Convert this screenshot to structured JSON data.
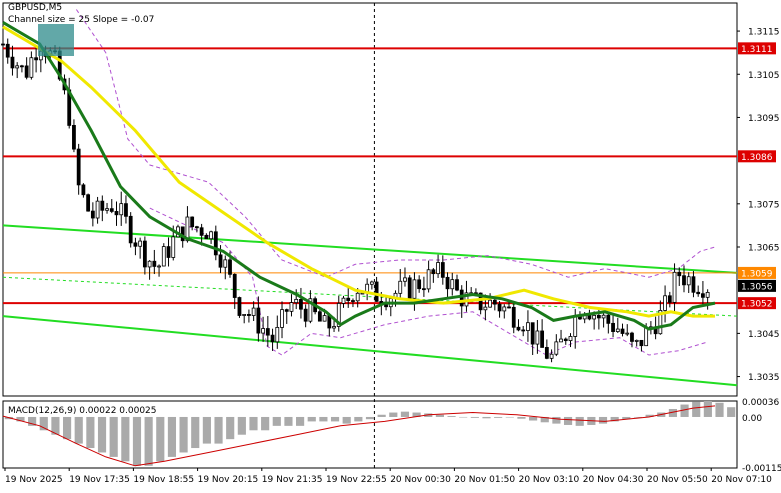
{
  "header": {
    "symbol": "GBPUSD,M5",
    "indicator": "Channel size = 25 Slope = -0.07"
  },
  "macd": {
    "label": "MACD(12,26,9) 0.00022 0.00025",
    "axis_top": "0.00036",
    "axis_zero": "0.00",
    "axis_bottom": "-0.00115"
  },
  "colors": {
    "candle": "#000000",
    "fast_ma": "#1a7a1a",
    "slow_ma": "#f0e800",
    "channel": "#22dd22",
    "envelope": "#b050d0",
    "hline": "#dd0000",
    "current_price": "#ff8800",
    "macd_hist": "#aaaaaa",
    "macd_signal": "#cc0000"
  },
  "chart_data": {
    "type": "line",
    "title": "GBPUSD,M5",
    "y_ticks": [
      "1.3115",
      "1.3105",
      "1.3095",
      "1.3075",
      "1.3065",
      "1.3045",
      "1.3035"
    ],
    "ylim": [
      1.30305,
      1.31215
    ],
    "x_ticks": [
      "19 Nov 2025",
      "19 Nov 17:35",
      "19 Nov 18:55",
      "19 Nov 20:15",
      "19 Nov 21:35",
      "19 Nov 22:55",
      "20 Nov 00:30",
      "20 Nov 01:50",
      "20 Nov 03:10",
      "20 Nov 04:30",
      "20 Nov 05:50",
      "20 Nov 07:10"
    ],
    "levels": [
      {
        "label": "1.3111",
        "value": 1.3111,
        "kind": "resistance"
      },
      {
        "label": "1.3086",
        "value": 1.3086,
        "kind": "resistance"
      },
      {
        "label": "1.3059",
        "value": 1.3059,
        "kind": "current"
      },
      {
        "label": "1.3052",
        "value": 1.3052,
        "kind": "support"
      }
    ],
    "last_price": "1.3056",
    "channel": {
      "upper": [
        [
          0,
          1.307
        ],
        [
          100,
          1.3059
        ]
      ],
      "lower": [
        [
          0,
          1.3049
        ],
        [
          100,
          1.3033
        ]
      ]
    },
    "price_path": [
      [
        0,
        1.3112
      ],
      [
        3,
        1.3105
      ],
      [
        5,
        1.3113
      ],
      [
        7,
        1.3108
      ],
      [
        9,
        1.3096
      ],
      [
        10,
        1.308
      ],
      [
        12,
        1.3072
      ],
      [
        15,
        1.3075
      ],
      [
        17,
        1.307
      ],
      [
        19,
        1.3064
      ],
      [
        21,
        1.306
      ],
      [
        23,
        1.3066
      ],
      [
        25,
        1.307
      ],
      [
        28,
        1.3069
      ],
      [
        30,
        1.3062
      ],
      [
        32,
        1.3052
      ],
      [
        35,
        1.3047
      ],
      [
        37,
        1.3043
      ],
      [
        39,
        1.3052
      ],
      [
        42,
        1.305
      ],
      [
        44,
        1.3046
      ],
      [
        46,
        1.305
      ],
      [
        48,
        1.3056
      ],
      [
        51,
        1.3054
      ],
      [
        53,
        1.3054
      ],
      [
        56,
        1.3056
      ],
      [
        58,
        1.3058
      ],
      [
        60,
        1.3059
      ],
      [
        62,
        1.3054
      ],
      [
        64,
        1.3052
      ],
      [
        67,
        1.3052
      ],
      [
        69,
        1.305
      ],
      [
        71,
        1.3048
      ],
      [
        73,
        1.3042
      ],
      [
        75,
        1.3039
      ],
      [
        77,
        1.3046
      ],
      [
        79,
        1.3052
      ],
      [
        81,
        1.3049
      ],
      [
        84,
        1.3046
      ],
      [
        86,
        1.3041
      ],
      [
        88,
        1.3046
      ],
      [
        90,
        1.305
      ],
      [
        92,
        1.3059
      ],
      [
        94,
        1.3057
      ],
      [
        96,
        1.3056
      ]
    ],
    "fast_ma_path": [
      [
        0,
        1.3117
      ],
      [
        5,
        1.3112
      ],
      [
        8,
        1.3104
      ],
      [
        12,
        1.3092
      ],
      [
        16,
        1.3079
      ],
      [
        20,
        1.3072
      ],
      [
        25,
        1.3067
      ],
      [
        30,
        1.3064
      ],
      [
        35,
        1.3058
      ],
      [
        40,
        1.3054
      ],
      [
        44,
        1.305
      ],
      [
        46,
        1.3047
      ],
      [
        48,
        1.3049
      ],
      [
        52,
        1.3052
      ],
      [
        56,
        1.3052
      ],
      [
        60,
        1.3053
      ],
      [
        64,
        1.3054
      ],
      [
        68,
        1.3053
      ],
      [
        72,
        1.3051
      ],
      [
        75,
        1.3048
      ],
      [
        78,
        1.3049
      ],
      [
        82,
        1.305
      ],
      [
        86,
        1.3048
      ],
      [
        88,
        1.3046
      ],
      [
        91,
        1.3047
      ],
      [
        94,
        1.3051
      ],
      [
        97,
        1.3052
      ]
    ],
    "slow_ma_path": [
      [
        0,
        1.3116
      ],
      [
        8,
        1.3108
      ],
      [
        12,
        1.3102
      ],
      [
        18,
        1.3092
      ],
      [
        24,
        1.308
      ],
      [
        30,
        1.3073
      ],
      [
        36,
        1.3066
      ],
      [
        42,
        1.306
      ],
      [
        48,
        1.3055
      ],
      [
        54,
        1.3053
      ],
      [
        60,
        1.3052
      ],
      [
        66,
        1.3053
      ],
      [
        71,
        1.3055
      ],
      [
        75,
        1.3053
      ],
      [
        80,
        1.3051
      ],
      [
        85,
        1.305
      ],
      [
        88,
        1.3049
      ],
      [
        91,
        1.305
      ],
      [
        94,
        1.3049
      ],
      [
        97,
        1.3049
      ]
    ],
    "envelope_upper": [
      [
        10,
        1.312
      ],
      [
        14,
        1.311
      ],
      [
        17,
        1.309
      ],
      [
        20,
        1.3084
      ],
      [
        28,
        1.308
      ],
      [
        33,
        1.3072
      ],
      [
        38,
        1.3062
      ],
      [
        44,
        1.3058
      ],
      [
        48,
        1.3061
      ],
      [
        54,
        1.3062
      ],
      [
        60,
        1.3062
      ],
      [
        66,
        1.3063
      ],
      [
        72,
        1.3061
      ],
      [
        77,
        1.3058
      ],
      [
        82,
        1.306
      ],
      [
        88,
        1.3058
      ],
      [
        92,
        1.306
      ],
      [
        95,
        1.3064
      ],
      [
        97,
        1.3065
      ]
    ],
    "envelope_lower": [
      [
        20,
        1.3074
      ],
      [
        25,
        1.307
      ],
      [
        30,
        1.3066
      ],
      [
        34,
        1.3058
      ],
      [
        36,
        1.3042
      ],
      [
        38,
        1.304
      ],
      [
        42,
        1.3045
      ],
      [
        46,
        1.3044
      ],
      [
        52,
        1.3047
      ],
      [
        58,
        1.3049
      ],
      [
        64,
        1.305
      ],
      [
        70,
        1.3044
      ],
      [
        74,
        1.304
      ],
      [
        78,
        1.3043
      ],
      [
        84,
        1.3044
      ],
      [
        88,
        1.304
      ],
      [
        92,
        1.3041
      ],
      [
        96,
        1.3043
      ]
    ],
    "macd_hist": [
      -5e-05,
      -0.0001,
      -0.0002,
      -0.0003,
      -0.0004,
      -0.0005,
      -0.0006,
      -0.0007,
      -0.0008,
      -0.0009,
      -0.001,
      -0.0011,
      -0.0011,
      -0.001,
      -0.0009,
      -0.0008,
      -0.0007,
      -0.0006,
      -0.0006,
      -0.0005,
      -0.0004,
      -0.0003,
      -0.0003,
      -0.0002,
      -0.0002,
      -0.0002,
      -0.0001,
      -0.0001,
      -0.0001,
      -0.00015,
      -0.0001,
      -5e-05,
      5e-05,
      0.0001,
      0.00012,
      0.0001,
      8e-05,
      5e-05,
      2e-05,
      0.0,
      -2e-05,
      -3e-05,
      -2e-05,
      0.0,
      -4e-05,
      -8e-05,
      -0.00012,
      -0.00015,
      -0.00018,
      -0.0002,
      -0.00018,
      -0.00015,
      -0.0001,
      -5e-05,
      0.0,
      5e-05,
      0.0001,
      0.00018,
      0.00028,
      0.00034,
      0.00036,
      0.00032,
      0.00022
    ],
    "macd_signal": [
      [
        0,
        2e-05
      ],
      [
        5,
        -0.0002
      ],
      [
        10,
        -0.0006
      ],
      [
        14,
        -0.0009
      ],
      [
        18,
        -0.0011
      ],
      [
        22,
        -0.001
      ],
      [
        28,
        -0.0008
      ],
      [
        34,
        -0.0006
      ],
      [
        40,
        -0.0004
      ],
      [
        46,
        -0.0002
      ],
      [
        52,
        -0.0001
      ],
      [
        58,
        5e-05
      ],
      [
        64,
        0.0001
      ],
      [
        70,
        5e-05
      ],
      [
        76,
        -5e-05
      ],
      [
        82,
        -0.0001
      ],
      [
        88,
        0.0
      ],
      [
        94,
        0.0002
      ],
      [
        97,
        0.00025
      ]
    ]
  }
}
